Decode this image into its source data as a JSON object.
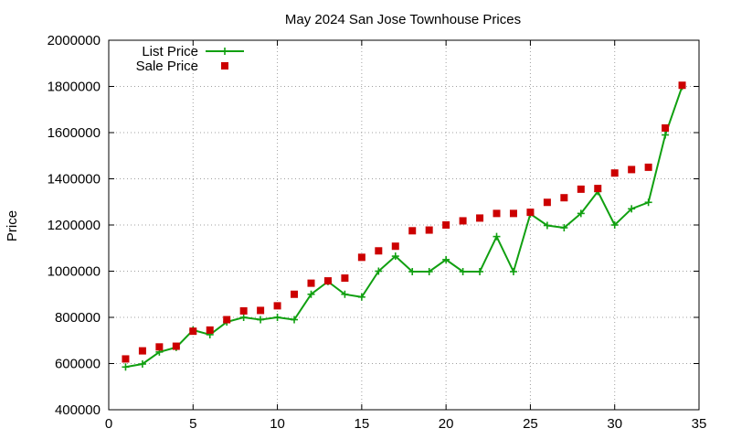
{
  "chart_data": {
    "type": "line",
    "title": "May 2024 San Jose Townhouse Prices",
    "xlabel": "",
    "ylabel": "Price",
    "xlim": [
      0,
      35
    ],
    "ylim": [
      400000,
      2000000
    ],
    "x_ticks": [
      0,
      5,
      10,
      15,
      20,
      25,
      30,
      35
    ],
    "y_ticks": [
      400000,
      600000,
      800000,
      1000000,
      1200000,
      1400000,
      1600000,
      1800000,
      2000000
    ],
    "grid": true,
    "legend_position": "top-left",
    "x": [
      1,
      2,
      3,
      4,
      5,
      6,
      7,
      8,
      9,
      10,
      11,
      12,
      13,
      14,
      15,
      16,
      17,
      18,
      19,
      20,
      21,
      22,
      23,
      24,
      25,
      26,
      27,
      28,
      29,
      30,
      31,
      32,
      33,
      34
    ],
    "series": [
      {
        "name": "List Price",
        "style": "linespoints",
        "color": "#11a011",
        "marker": "plus",
        "values": [
          585000,
          598000,
          650000,
          670000,
          745000,
          725000,
          780000,
          800000,
          790000,
          800000,
          790000,
          900000,
          955000,
          900000,
          888000,
          1000000,
          1065000,
          998000,
          998000,
          1050000,
          998000,
          998000,
          1150000,
          998000,
          1248000,
          1198000,
          1188000,
          1250000,
          1345000,
          1200000,
          1270000,
          1298000,
          1590000,
          1800000
        ]
      },
      {
        "name": "Sale Price",
        "style": "points",
        "color": "#cc0000",
        "marker": "square",
        "values": [
          620000,
          655000,
          672000,
          675000,
          740000,
          745000,
          790000,
          828000,
          830000,
          850000,
          900000,
          948000,
          958000,
          970000,
          1060000,
          1088000,
          1108000,
          1175000,
          1178000,
          1200000,
          1218000,
          1230000,
          1250000,
          1250000,
          1255000,
          1298000,
          1318000,
          1355000,
          1358000,
          1425000,
          1440000,
          1450000,
          1620000,
          1805000
        ]
      }
    ]
  }
}
